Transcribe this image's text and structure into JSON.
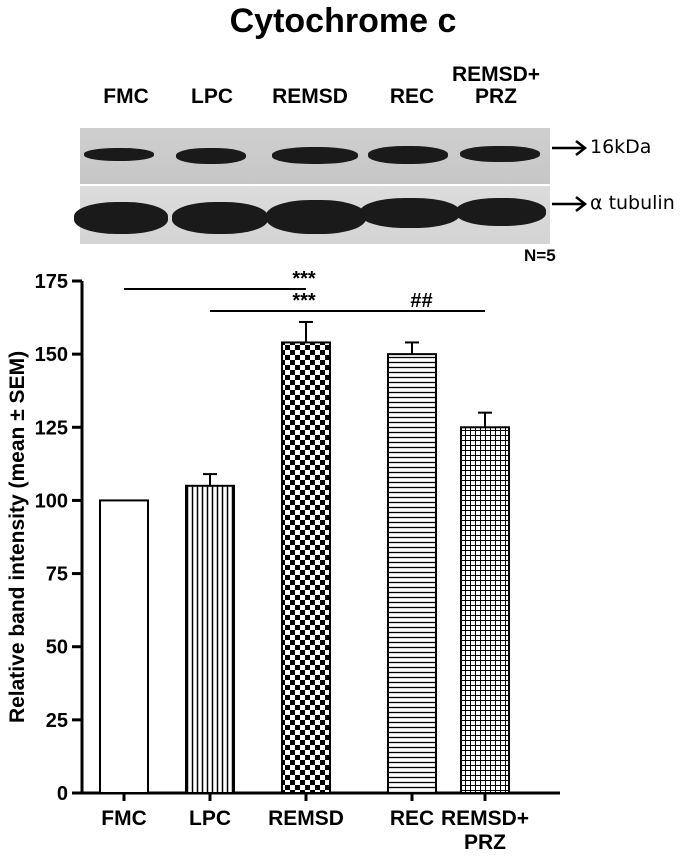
{
  "chart_data": {
    "type": "bar",
    "title": "Cytochrome c",
    "categories": [
      "FMC",
      "LPC",
      "REMSD",
      "REC",
      "REMSD+\nPRZ"
    ],
    "values": [
      100,
      105,
      154,
      150,
      125
    ],
    "errors": [
      0,
      4,
      7,
      4,
      5
    ],
    "patterns": [
      "none",
      "vertical-lines",
      "checker",
      "horizontal-lines",
      "grid"
    ],
    "ylabel": "Relative band intensity (mean ± SEM)",
    "xlabel": "",
    "ylim": [
      0,
      175
    ],
    "yticks": [
      0,
      25,
      50,
      75,
      100,
      125,
      150,
      175
    ],
    "grid": false,
    "annotations": [
      {
        "from": "FMC",
        "to": "REMSD",
        "label": "***"
      },
      {
        "from": "LPC",
        "to": "REMSD",
        "label": "***"
      },
      {
        "from": "REMSD",
        "to": "REMSD+\nPRZ",
        "label": "##"
      }
    ]
  },
  "blot": {
    "lanes": [
      "FMC",
      "LPC",
      "REMSD",
      "REC",
      "REMSD+\nPRZ"
    ],
    "marker_top": "16kDa",
    "marker_bottom": "α tubulin",
    "n_label": "N=5"
  }
}
